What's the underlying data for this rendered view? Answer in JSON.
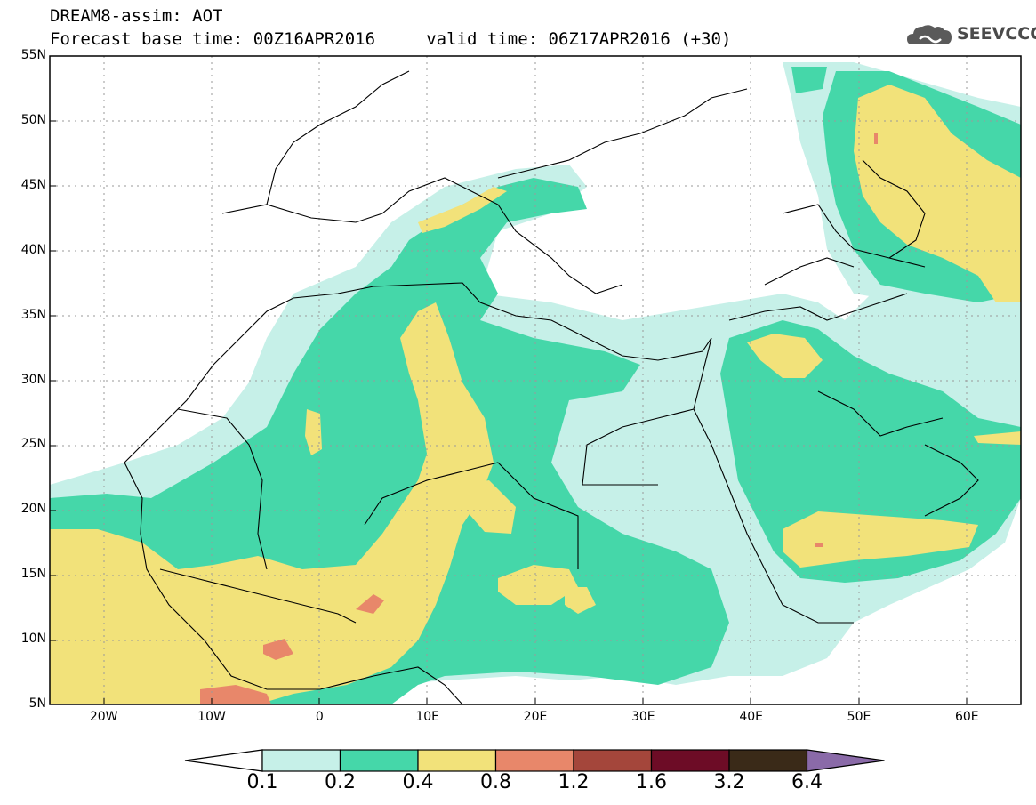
{
  "title": {
    "line1": "DREAM8-assim: AOT",
    "line2": "Forecast base time: 00Z16APR2016     valid time: 06Z17APR2016 (+30)"
  },
  "logo": {
    "text": "SEEVCCC",
    "icon": "cloud-icon"
  },
  "map": {
    "lon_range": [
      -25,
      65
    ],
    "lat_range": [
      5,
      55
    ],
    "lat_ticks": [
      {
        "lat": 55,
        "label": "55N"
      },
      {
        "lat": 50,
        "label": "50N"
      },
      {
        "lat": 45,
        "label": "45N"
      },
      {
        "lat": 40,
        "label": "40N"
      },
      {
        "lat": 35,
        "label": "35N"
      },
      {
        "lat": 30,
        "label": "30N"
      },
      {
        "lat": 25,
        "label": "25N"
      },
      {
        "lat": 20,
        "label": "20N"
      },
      {
        "lat": 15,
        "label": "15N"
      },
      {
        "lat": 10,
        "label": "10N"
      },
      {
        "lat": 5,
        "label": "5N"
      }
    ],
    "lon_ticks": [
      {
        "lon": -20,
        "label": "20W"
      },
      {
        "lon": -10,
        "label": "10W"
      },
      {
        "lon": 0,
        "label": "0"
      },
      {
        "lon": 10,
        "label": "10E"
      },
      {
        "lon": 20,
        "label": "20E"
      },
      {
        "lon": 30,
        "label": "30E"
      },
      {
        "lon": 40,
        "label": "40E"
      },
      {
        "lon": 50,
        "label": "50E"
      },
      {
        "lon": 60,
        "label": "60E"
      }
    ],
    "grid": true
  },
  "legend": {
    "levels": [
      "0.1",
      "0.2",
      "0.4",
      "0.8",
      "1.2",
      "1.6",
      "3.2",
      "6.4"
    ],
    "colors": [
      "#ffffff",
      "#c6f0e8",
      "#45d7a9",
      "#f2e27a",
      "#e8876a",
      "#a4463b",
      "#6d0c26",
      "#3a2a18",
      "#8a6aa8"
    ]
  }
}
